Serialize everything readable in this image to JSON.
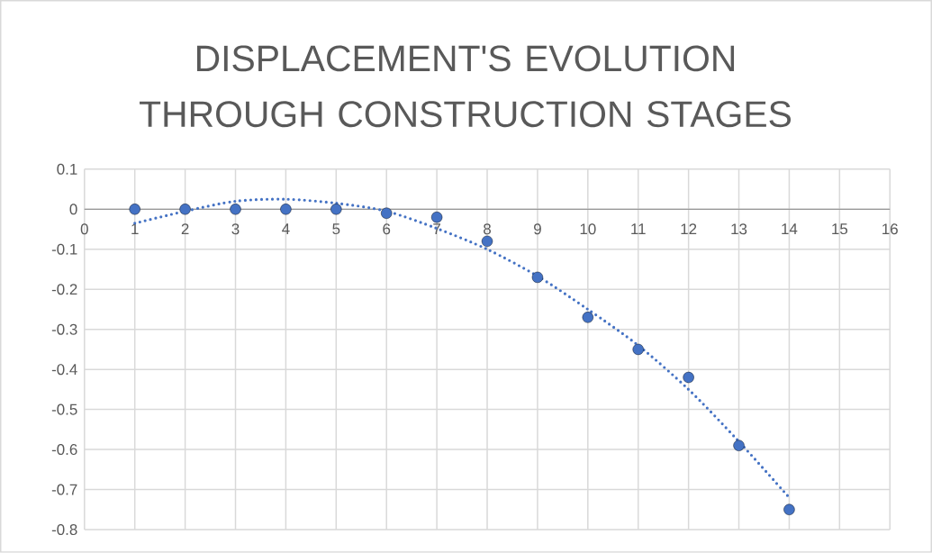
{
  "chart_data": {
    "type": "scatter",
    "title": "DISPLACEMENT'S EVOLUTION THROUGH CONSTRUCTION STAGES",
    "x": [
      1,
      2,
      3,
      4,
      5,
      6,
      7,
      8,
      9,
      10,
      11,
      12,
      13,
      14
    ],
    "series": [
      {
        "type": "scatter",
        "color": "#4472c4",
        "marker": "circle",
        "values": [
          0,
          0,
          0,
          0,
          0,
          -0.01,
          -0.02,
          -0.08,
          -0.17,
          -0.27,
          -0.35,
          -0.42,
          -0.59,
          -0.75
        ]
      },
      {
        "type": "line",
        "color": "#4472c4",
        "line_style": "dotted",
        "marker": "none",
        "x": [
          1,
          2,
          3,
          4,
          5,
          6,
          7,
          8,
          9,
          10,
          11,
          12,
          13,
          14
        ],
        "values": [
          -0.035,
          -0.005,
          0.02,
          0.025,
          0.015,
          -0.005,
          -0.048,
          -0.1,
          -0.167,
          -0.25,
          -0.34,
          -0.45,
          -0.58,
          -0.72
        ]
      }
    ],
    "xlim": [
      0,
      16
    ],
    "xticks": [
      0,
      1,
      2,
      3,
      4,
      5,
      6,
      7,
      8,
      9,
      10,
      11,
      12,
      13,
      14,
      15,
      16
    ],
    "ylim": [
      -0.8,
      0.1
    ],
    "yticks": [
      -0.8,
      -0.7,
      -0.6,
      -0.5,
      -0.4,
      -0.3,
      -0.2,
      -0.1,
      0,
      0.1
    ],
    "grid": true
  }
}
